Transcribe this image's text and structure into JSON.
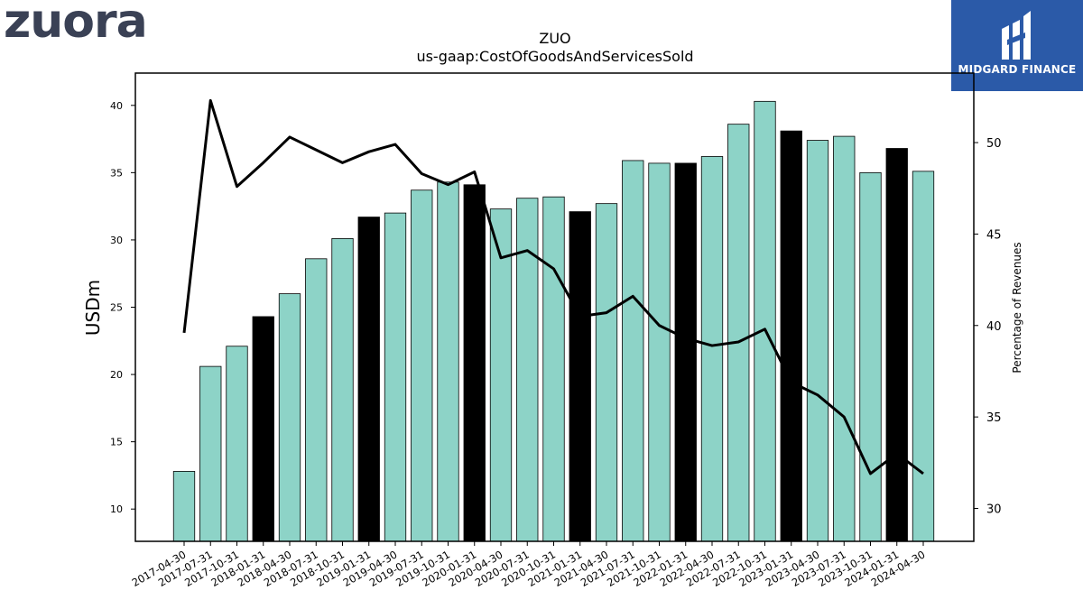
{
  "branding": {
    "company_logo_text": "zuora",
    "publisher_logo_text": "MIDGARD FINANCE"
  },
  "colors": {
    "bar_regular": "#8dd3c7",
    "bar_highlight": "#000000",
    "line": "#000000",
    "logo_text": "#3a4155",
    "publisher_bg": "#2b5aa8"
  },
  "chart_data": {
    "type": "bar",
    "title": "ZUO",
    "subtitle": "us-gaap:CostOfGoodsAndServicesSold",
    "ylabel": "USDm",
    "y2label": "Percentage of Revenues",
    "ylim": [
      7.6,
      42.4
    ],
    "y2lim": [
      28.2,
      53.8
    ],
    "yticks": [
      10,
      15,
      20,
      25,
      30,
      35,
      40
    ],
    "y2ticks": [
      30,
      35,
      40,
      45,
      50
    ],
    "categories": [
      "2017-04-30",
      "2017-07-31",
      "2017-10-31",
      "2018-01-31",
      "2018-04-30",
      "2018-07-31",
      "2018-10-31",
      "2019-01-31",
      "2019-04-30",
      "2019-07-31",
      "2019-10-31",
      "2020-01-31",
      "2020-04-30",
      "2020-07-31",
      "2020-10-31",
      "2021-01-31",
      "2021-04-30",
      "2021-07-31",
      "2021-10-31",
      "2022-01-31",
      "2022-04-30",
      "2022-07-31",
      "2022-10-31",
      "2023-01-31",
      "2023-04-30",
      "2023-07-31",
      "2023-10-31",
      "2024-01-31",
      "2024-04-30"
    ],
    "series": [
      {
        "type": "bar",
        "axis": "left",
        "values": [
          12.8,
          20.6,
          22.1,
          24.3,
          26.0,
          28.6,
          30.1,
          31.7,
          32.0,
          33.7,
          34.3,
          34.1,
          32.3,
          33.1,
          33.2,
          32.1,
          32.7,
          35.9,
          35.7,
          35.7,
          36.2,
          38.6,
          40.3,
          38.1,
          37.4,
          37.7,
          35.0,
          36.8,
          35.1
        ],
        "highlighted": [
          false,
          false,
          false,
          true,
          false,
          false,
          false,
          true,
          false,
          false,
          false,
          true,
          false,
          false,
          false,
          true,
          false,
          false,
          false,
          true,
          false,
          false,
          false,
          true,
          false,
          false,
          false,
          true,
          false
        ]
      },
      {
        "type": "line",
        "axis": "right",
        "values": [
          39.6,
          52.3,
          47.6,
          48.9,
          50.3,
          49.6,
          48.9,
          49.5,
          49.9,
          48.3,
          47.7,
          48.4,
          43.7,
          44.1,
          43.1,
          40.5,
          40.7,
          41.6,
          40.0,
          39.3,
          38.9,
          39.1,
          39.8,
          36.9,
          36.2,
          35.0,
          31.9,
          33.0,
          31.9
        ]
      }
    ]
  }
}
